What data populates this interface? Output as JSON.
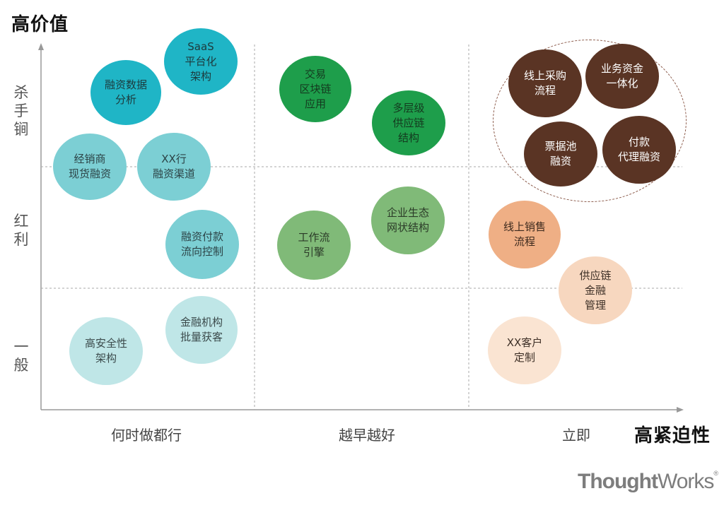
{
  "title_y": "高价值",
  "title_x": "高紧迫性",
  "y_labels": [
    [
      "杀",
      "手",
      "锏"
    ],
    [
      "红",
      "利"
    ],
    [
      "一",
      "般"
    ]
  ],
  "x_labels": [
    "何时做都行",
    "越早越好",
    "立即"
  ],
  "colors": {
    "teal_dark": "#1fb5c6",
    "teal_mid": "#7ccfd4",
    "teal_light": "#bfe6e7",
    "green_dark": "#1e9e4b",
    "green_mid": "#3daa57",
    "green_light": "#80ba78",
    "brown": "#5a3424",
    "orange": "#efaf85",
    "peach": "#f7d7bf",
    "peach_light": "#fae4d2"
  },
  "bubbles": [
    {
      "id": "saas",
      "lines": [
        "SaaS",
        "平台化",
        "架构"
      ],
      "color": "#1fb5c6",
      "text_color": "#1d3a3d"
    },
    {
      "id": "data",
      "lines": [
        "融资数据",
        "分析"
      ],
      "color": "#1fb5c6",
      "text_color": "#1d3a3d"
    },
    {
      "id": "dealer",
      "lines": [
        "经销商",
        "现货融资"
      ],
      "color": "#7ccfd4",
      "text_color": "#2c4346"
    },
    {
      "id": "xxchannel",
      "lines": [
        "XX行",
        "融资渠道"
      ],
      "color": "#7ccfd4",
      "text_color": "#2c4346"
    },
    {
      "id": "payment",
      "lines": [
        "融资付款",
        "流向控制"
      ],
      "color": "#7ccfd4",
      "text_color": "#2c4346"
    },
    {
      "id": "batch",
      "lines": [
        "金融机构",
        "批量获客"
      ],
      "color": "#bfe6e7",
      "text_color": "#3b4a4b"
    },
    {
      "id": "security",
      "lines": [
        "高安全性",
        "架构"
      ],
      "color": "#bfe6e7",
      "text_color": "#3b4a4b"
    },
    {
      "id": "blockchain",
      "lines": [
        "交易",
        "区块链",
        "应用"
      ],
      "color": "#1e9e4b",
      "text_color": "#143a1f"
    },
    {
      "id": "multilayer",
      "lines": [
        "多层级",
        "供应链",
        "结构"
      ],
      "color": "#1e9e4b",
      "text_color": "#143a1f"
    },
    {
      "id": "ecosystem",
      "lines": [
        "企业生态",
        "网状结构"
      ],
      "color": "#80ba78",
      "text_color": "#2b3b28"
    },
    {
      "id": "workflow",
      "lines": [
        "工作流",
        "引擎"
      ],
      "color": "#80ba78",
      "text_color": "#2b3b28"
    },
    {
      "id": "procurement",
      "lines": [
        "线上采购",
        "流程"
      ],
      "color": "#5a3424",
      "text_color": "#ffffff"
    },
    {
      "id": "bizfund",
      "lines": [
        "业务资金",
        "一体化"
      ],
      "color": "#5a3424",
      "text_color": "#ffffff"
    },
    {
      "id": "billpool",
      "lines": [
        "票据池",
        "融资"
      ],
      "color": "#5a3424",
      "text_color": "#ffffff"
    },
    {
      "id": "proxy",
      "lines": [
        "付款",
        "代理融资"
      ],
      "color": "#5a3424",
      "text_color": "#ffffff"
    },
    {
      "id": "sales",
      "lines": [
        "线上销售",
        "流程"
      ],
      "color": "#efaf85",
      "text_color": "#3d2a1e"
    },
    {
      "id": "scf",
      "lines": [
        "供应链",
        "金融",
        "管理"
      ],
      "color": "#f7d7bf",
      "text_color": "#3d2f26"
    },
    {
      "id": "custom",
      "lines": [
        "XX客户",
        "定制"
      ],
      "color": "#fae4d2",
      "text_color": "#3d2f26"
    }
  ],
  "logo": {
    "bold": "Thought",
    "light": "Works",
    "mark": "®"
  }
}
